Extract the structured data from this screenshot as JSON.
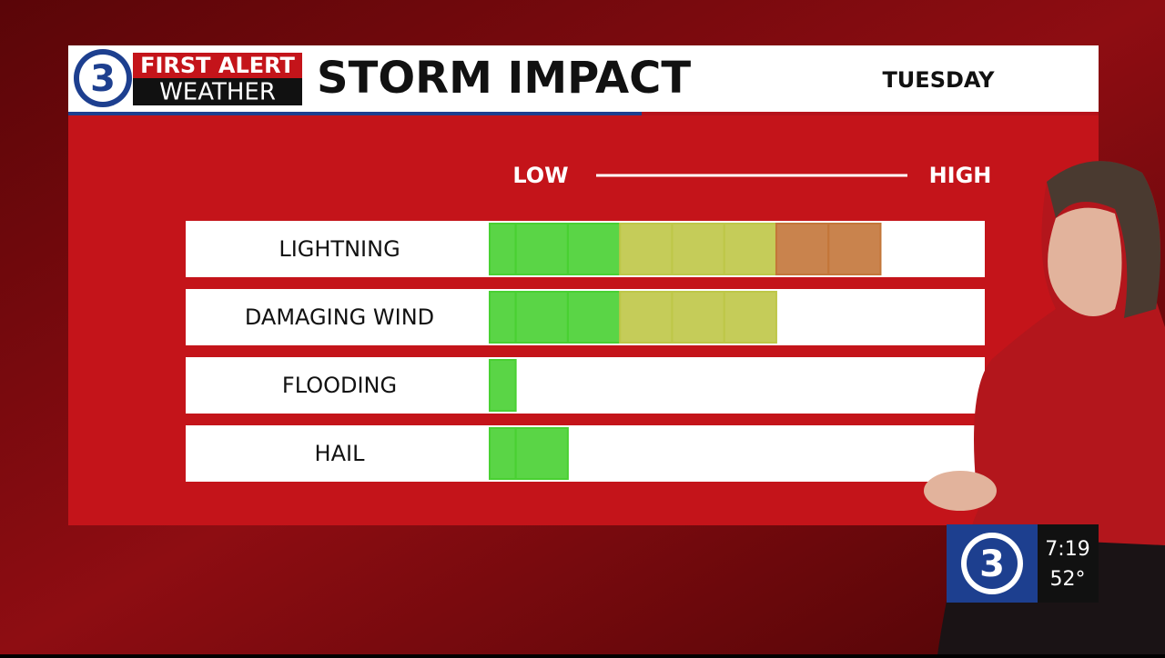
{
  "header": {
    "brand": [
      "FIRST ALERT",
      "WEATHER"
    ],
    "channel": "3",
    "day": "TUESDAY"
  },
  "chart_data": {
    "type": "segment-bar",
    "title": "STORM IMPACT",
    "scale_labels": [
      "LOW",
      "HIGH"
    ],
    "categories": [
      "LIGHTNING",
      "DAMAGING WIND",
      "FLOODING",
      "HAIL"
    ],
    "values": [
      7.5,
      5.5,
      0.5,
      1.5
    ],
    "xlim": [
      0,
      9.5
    ],
    "segment_colors": [
      "#4fe236",
      "#4fe236",
      "#4fe236",
      "#cfd84e",
      "#cfd84e",
      "#cfd84e",
      "#d4803e",
      "#d4803e"
    ]
  },
  "bug": {
    "channel": "3",
    "time": "7:19",
    "temperature": "52°"
  }
}
